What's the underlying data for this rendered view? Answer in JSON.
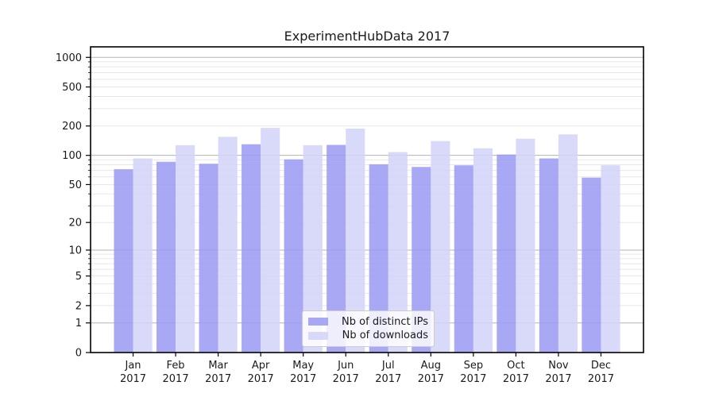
{
  "chart_data": {
    "type": "bar",
    "title": "ExperimentHubData 2017",
    "yscale": "log1p",
    "ylim": [
      0,
      1280
    ],
    "grid": true,
    "legend_position": "lower center",
    "categories": [
      "Jan 2017",
      "Feb 2017",
      "Mar 2017",
      "Apr 2017",
      "May 2017",
      "Jun 2017",
      "Jul 2017",
      "Aug 2017",
      "Sep 2017",
      "Oct 2017",
      "Nov 2017",
      "Dec 2017"
    ],
    "series": [
      {
        "name": "Nb of distinct IPs",
        "color": "#9999f2",
        "values": [
          72,
          86,
          82,
          130,
          91,
          128,
          81,
          76,
          79,
          102,
          93,
          59
        ]
      },
      {
        "name": "Nb of downloads",
        "color": "#d2d2f8",
        "values": [
          93,
          127,
          155,
          191,
          127,
          188,
          108,
          140,
          118,
          148,
          164,
          79
        ]
      }
    ],
    "yticks": [
      0,
      1,
      2,
      5,
      10,
      20,
      50,
      100,
      200,
      500,
      1000
    ],
    "xlabel": "",
    "ylabel": ""
  }
}
